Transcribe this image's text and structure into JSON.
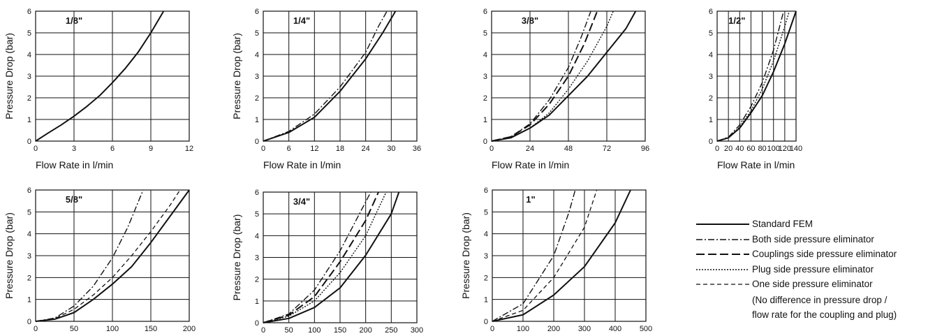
{
  "chart_data": [
    {
      "type": "line",
      "title": "1/8\"",
      "xlabel": "Flow Rate in l/min",
      "ylabel": "Pressure Drop (bar)",
      "xlim": [
        0,
        12
      ],
      "ylim": [
        0,
        6
      ],
      "xticks": [
        "0",
        "3",
        "6",
        "9",
        "12"
      ],
      "yticks": [
        "0",
        "1",
        "2",
        "3",
        "4",
        "5",
        "6"
      ],
      "series": [
        {
          "name": "Standard FEM",
          "style": "solid",
          "points": [
            [
              0,
              0
            ],
            [
              1,
              0.38
            ],
            [
              2,
              0.75
            ],
            [
              3,
              1.15
            ],
            [
              4,
              1.6
            ],
            [
              5,
              2.1
            ],
            [
              6,
              2.7
            ],
            [
              7,
              3.35
            ],
            [
              8,
              4.1
            ],
            [
              9,
              5.0
            ],
            [
              10,
              6.0
            ]
          ]
        }
      ]
    },
    {
      "type": "line",
      "title": "1/4\"",
      "xlabel": "Flow Rate in l/min",
      "ylabel": "Pressure Drop (bar)",
      "xlim": [
        0,
        36
      ],
      "ylim": [
        0,
        6
      ],
      "xticks": [
        "0",
        "6",
        "12",
        "18",
        "24",
        "30",
        "36"
      ],
      "yticks": [
        "0",
        "1",
        "2",
        "3",
        "4",
        "5",
        "6"
      ],
      "series": [
        {
          "name": "Standard FEM",
          "style": "solid",
          "points": [
            [
              0,
              0
            ],
            [
              6,
              0.4
            ],
            [
              12,
              1.1
            ],
            [
              18,
              2.3
            ],
            [
              24,
              3.8
            ],
            [
              28,
              5.0
            ],
            [
              31,
              6.0
            ]
          ]
        },
        {
          "name": "Both side pressure eliminator",
          "style": "dashdot",
          "points": [
            [
              0,
              0
            ],
            [
              6,
              0.45
            ],
            [
              12,
              1.25
            ],
            [
              18,
              2.5
            ],
            [
              24,
              4.1
            ],
            [
              27,
              5.3
            ],
            [
              29,
              6.0
            ]
          ]
        }
      ]
    },
    {
      "type": "line",
      "title": "3/8\"",
      "xlabel": "Flow Rate in l/min",
      "ylabel": "",
      "xlim": [
        0,
        96
      ],
      "ylim": [
        0,
        6
      ],
      "xticks": [
        "0",
        "24",
        "48",
        "72",
        "96"
      ],
      "yticks": [
        "0",
        "1",
        "2",
        "3",
        "4",
        "5",
        "6"
      ],
      "series": [
        {
          "name": "Standard FEM",
          "style": "solid",
          "points": [
            [
              0,
              0
            ],
            [
              12,
              0.15
            ],
            [
              24,
              0.6
            ],
            [
              36,
              1.2
            ],
            [
              48,
              2.1
            ],
            [
              60,
              3.0
            ],
            [
              72,
              4.1
            ],
            [
              84,
              5.2
            ],
            [
              90,
              6.0
            ]
          ]
        },
        {
          "name": "Both side pressure eliminator",
          "style": "dashdot",
          "points": [
            [
              0,
              0
            ],
            [
              12,
              0.2
            ],
            [
              24,
              0.8
            ],
            [
              36,
              1.9
            ],
            [
              48,
              3.4
            ],
            [
              56,
              4.8
            ],
            [
              62,
              6.0
            ]
          ]
        },
        {
          "name": "Couplings side pressure eliminator",
          "style": "dash",
          "points": [
            [
              0,
              0
            ],
            [
              12,
              0.2
            ],
            [
              24,
              0.75
            ],
            [
              36,
              1.7
            ],
            [
              48,
              3.0
            ],
            [
              58,
              4.5
            ],
            [
              66,
              6.0
            ]
          ]
        },
        {
          "name": "Plug side pressure eliminator",
          "style": "dot",
          "points": [
            [
              0,
              0
            ],
            [
              12,
              0.18
            ],
            [
              24,
              0.6
            ],
            [
              36,
              1.3
            ],
            [
              48,
              2.4
            ],
            [
              60,
              3.7
            ],
            [
              72,
              5.3
            ],
            [
              76,
              6.0
            ]
          ]
        }
      ]
    },
    {
      "type": "line",
      "title": "1/2\"",
      "xlabel": "Flow Rate in l/min",
      "ylabel": "",
      "xlim": [
        0,
        140
      ],
      "ylim": [
        0,
        6
      ],
      "xticks": [
        "0",
        "20",
        "40",
        "60",
        "80",
        "100",
        "120",
        "140"
      ],
      "yticks": [
        "0",
        "1",
        "2",
        "3",
        "4",
        "5",
        "6"
      ],
      "series": [
        {
          "name": "Standard FEM",
          "style": "solid",
          "points": [
            [
              0,
              0
            ],
            [
              20,
              0.15
            ],
            [
              40,
              0.6
            ],
            [
              60,
              1.3
            ],
            [
              80,
              2.1
            ],
            [
              100,
              3.2
            ],
            [
              120,
              4.5
            ],
            [
              140,
              6.0
            ]
          ]
        },
        {
          "name": "Both side pressure eliminator",
          "style": "dashdot",
          "points": [
            [
              0,
              0
            ],
            [
              20,
              0.18
            ],
            [
              40,
              0.75
            ],
            [
              60,
              1.6
            ],
            [
              80,
              2.7
            ],
            [
              100,
              4.2
            ],
            [
              114,
              5.6
            ],
            [
              118,
              6.0
            ]
          ]
        },
        {
          "name": "Plug side pressure eliminator",
          "style": "dot",
          "points": [
            [
              0,
              0
            ],
            [
              20,
              0.15
            ],
            [
              40,
              0.65
            ],
            [
              60,
              1.4
            ],
            [
              80,
              2.4
            ],
            [
              100,
              3.7
            ],
            [
              120,
              5.3
            ],
            [
              128,
              6.0
            ]
          ]
        }
      ]
    },
    {
      "type": "line",
      "title": "5/8\"",
      "xlabel": "",
      "ylabel": "Pressure Drop (bar)",
      "xlim": [
        0,
        200
      ],
      "ylim": [
        0,
        6
      ],
      "xticks": [
        "0",
        "50",
        "100",
        "150",
        "200"
      ],
      "yticks": [
        "0",
        "1",
        "2",
        "3",
        "4",
        "5",
        "6"
      ],
      "series": [
        {
          "name": "Standard FEM",
          "style": "solid",
          "points": [
            [
              0,
              0
            ],
            [
              25,
              0.1
            ],
            [
              50,
              0.4
            ],
            [
              75,
              1.0
            ],
            [
              100,
              1.7
            ],
            [
              125,
              2.5
            ],
            [
              150,
              3.6
            ],
            [
              175,
              4.8
            ],
            [
              200,
              6.0
            ]
          ]
        },
        {
          "name": "Both side pressure eliminator",
          "style": "dashdot",
          "points": [
            [
              0,
              0
            ],
            [
              25,
              0.15
            ],
            [
              50,
              0.7
            ],
            [
              75,
              1.6
            ],
            [
              100,
              2.9
            ],
            [
              120,
              4.3
            ],
            [
              140,
              6.0
            ]
          ]
        },
        {
          "name": "One side pressure eliminator",
          "style": "shortdash",
          "points": [
            [
              0,
              0
            ],
            [
              25,
              0.12
            ],
            [
              50,
              0.55
            ],
            [
              75,
              1.2
            ],
            [
              100,
              2.0
            ],
            [
              125,
              3.0
            ],
            [
              150,
              4.1
            ],
            [
              175,
              5.3
            ],
            [
              188,
              6.0
            ]
          ]
        }
      ]
    },
    {
      "type": "line",
      "title": "3/4\"",
      "xlabel": "",
      "ylabel": "Pressure Drop (bar)",
      "xlim": [
        0,
        300
      ],
      "ylim": [
        0,
        6
      ],
      "xticks": [
        "0",
        "50",
        "100",
        "150",
        "200",
        "250",
        "300"
      ],
      "yticks": [
        "0",
        "1",
        "2",
        "3",
        "4",
        "5",
        "6"
      ],
      "series": [
        {
          "name": "Standard FEM",
          "style": "solid",
          "points": [
            [
              0,
              0
            ],
            [
              50,
              0.2
            ],
            [
              100,
              0.7
            ],
            [
              150,
              1.6
            ],
            [
              200,
              3.1
            ],
            [
              250,
              5.0
            ],
            [
              265,
              6.0
            ]
          ]
        },
        {
          "name": "Both side pressure eliminator",
          "style": "dashdot",
          "points": [
            [
              0,
              0
            ],
            [
              50,
              0.4
            ],
            [
              100,
              1.5
            ],
            [
              150,
              3.3
            ],
            [
              190,
              5.1
            ],
            [
              210,
              6.0
            ]
          ]
        },
        {
          "name": "Couplings side pressure eliminator",
          "style": "dash",
          "points": [
            [
              0,
              0
            ],
            [
              50,
              0.35
            ],
            [
              100,
              1.2
            ],
            [
              150,
              2.8
            ],
            [
              200,
              4.7
            ],
            [
              225,
              6.0
            ]
          ]
        },
        {
          "name": "Plug side pressure eliminator",
          "style": "dot",
          "points": [
            [
              0,
              0
            ],
            [
              50,
              0.3
            ],
            [
              100,
              1.0
            ],
            [
              150,
              2.3
            ],
            [
              200,
              4.0
            ],
            [
              240,
              6.0
            ]
          ]
        }
      ]
    },
    {
      "type": "line",
      "title": "1\"",
      "xlabel": "",
      "ylabel": "Pressure Drop (bar)",
      "xlim": [
        0,
        500
      ],
      "ylim": [
        0,
        6
      ],
      "xticks": [
        "0",
        "100",
        "200",
        "300",
        "400",
        "500"
      ],
      "yticks": [
        "0",
        "1",
        "2",
        "3",
        "4",
        "5",
        "6"
      ],
      "series": [
        {
          "name": "Standard FEM",
          "style": "solid",
          "points": [
            [
              0,
              0
            ],
            [
              100,
              0.3
            ],
            [
              200,
              1.2
            ],
            [
              300,
              2.5
            ],
            [
              400,
              4.5
            ],
            [
              450,
              6.0
            ]
          ]
        },
        {
          "name": "Both side pressure eliminator",
          "style": "dashdot",
          "points": [
            [
              0,
              0
            ],
            [
              100,
              0.8
            ],
            [
              200,
              3.0
            ],
            [
              250,
              5.0
            ],
            [
              270,
              6.0
            ]
          ]
        },
        {
          "name": "One side pressure eliminator",
          "style": "shortdash",
          "points": [
            [
              0,
              0
            ],
            [
              100,
              0.5
            ],
            [
              200,
              2.0
            ],
            [
              300,
              4.3
            ],
            [
              340,
              6.0
            ]
          ]
        }
      ]
    }
  ],
  "legend": {
    "items": [
      {
        "label": "Standard FEM",
        "style": "solid"
      },
      {
        "label": "Both side pressure eliminator",
        "style": "dashdot"
      },
      {
        "label": "Couplings side pressure eliminator",
        "style": "dash"
      },
      {
        "label": "Plug side pressure eliminator",
        "style": "dot"
      },
      {
        "label": "One side pressure eliminator",
        "style": "shortdash"
      }
    ],
    "note_line1": "(No difference in pressure drop /",
    "note_line2": "flow rate for the coupling and plug)"
  },
  "colors": {
    "line": "#111111",
    "grid": "#111111",
    "background": "#ffffff"
  }
}
